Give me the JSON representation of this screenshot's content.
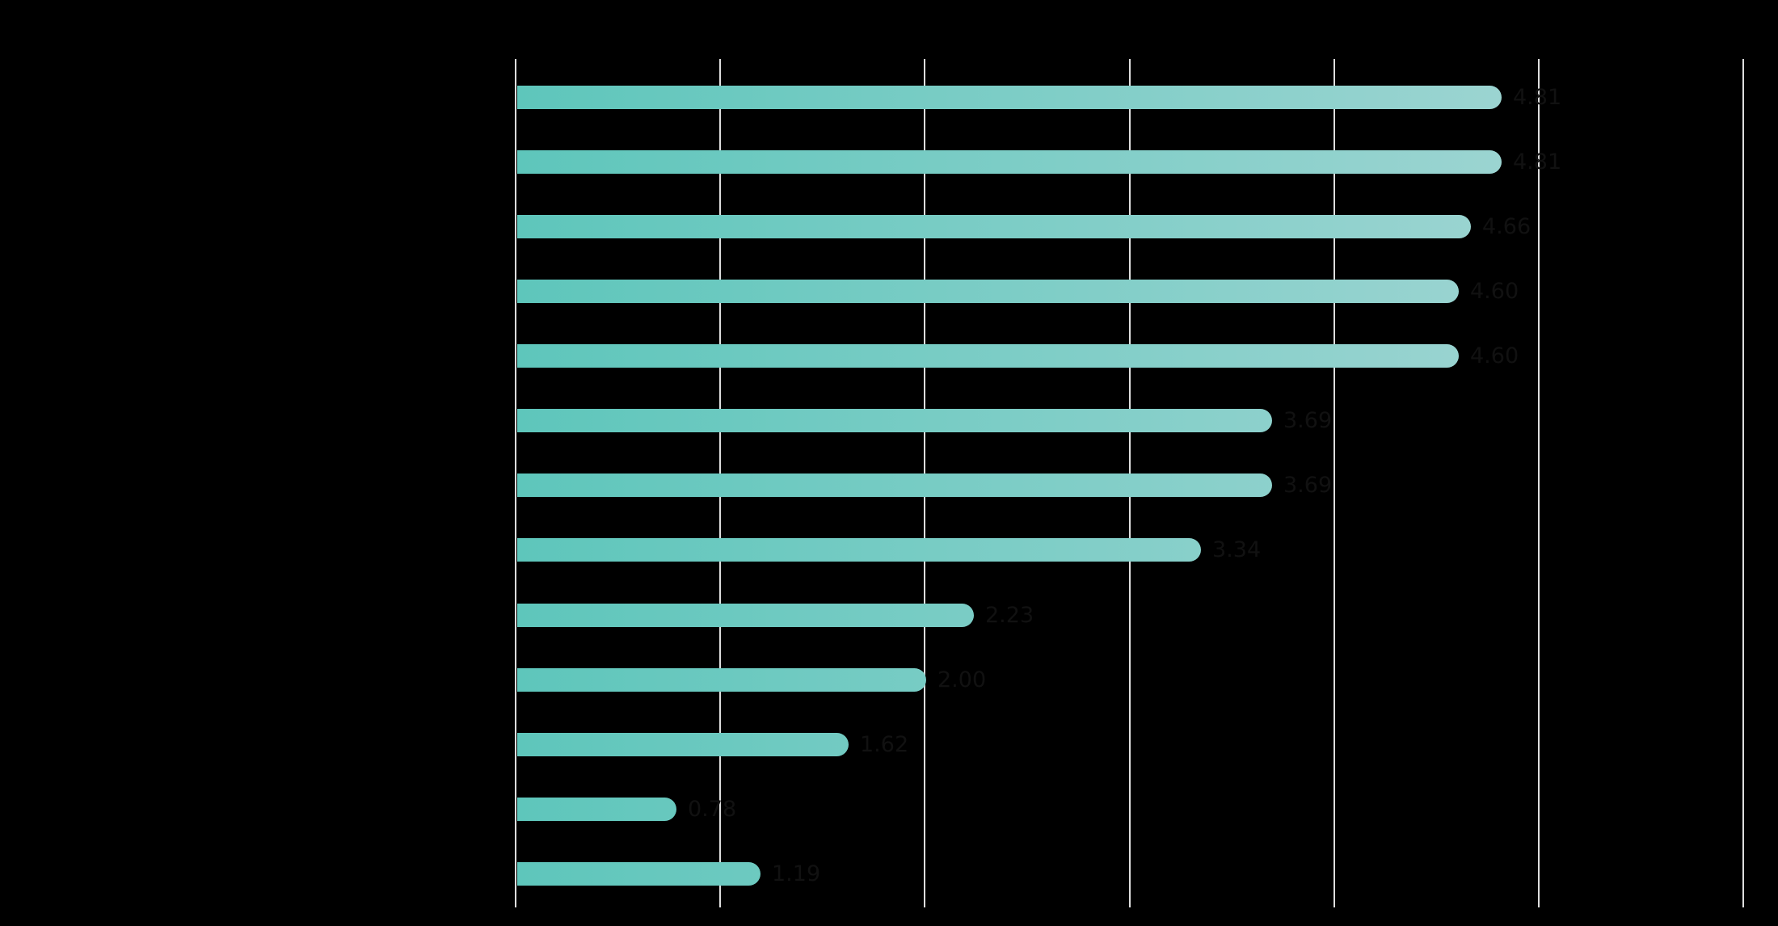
{
  "app": {
    "background": "#000000"
  },
  "chart_data": {
    "type": "bar",
    "orientation": "horizontal",
    "title": "",
    "categories": [
      "",
      "",
      "",
      "",
      "",
      "",
      "",
      "",
      "",
      "",
      "",
      "",
      ""
    ],
    "values": [
      4.81,
      4.81,
      4.66,
      4.6,
      4.6,
      3.69,
      3.69,
      3.34,
      2.23,
      2.0,
      1.62,
      0.78,
      1.19
    ],
    "value_labels": [
      "4.81",
      "4.81",
      "4.66",
      "4.60",
      "4.60",
      "3.69",
      "3.69",
      "3.34",
      "2.23",
      "2.00",
      "1.62",
      "0.78",
      "1.19"
    ],
    "xlim": [
      0,
      6
    ],
    "x_gridlines": [
      0,
      1,
      2,
      3,
      4,
      5,
      6
    ],
    "grid": true,
    "legend_visible": false,
    "axis_tick_text_visible": false,
    "colors": {
      "bar_gradient_start": "#5ec6bb",
      "bar_gradient_end": "#9bd4d1",
      "gridline": "#dedede",
      "value_label": "#111111",
      "background": "#000000"
    }
  }
}
